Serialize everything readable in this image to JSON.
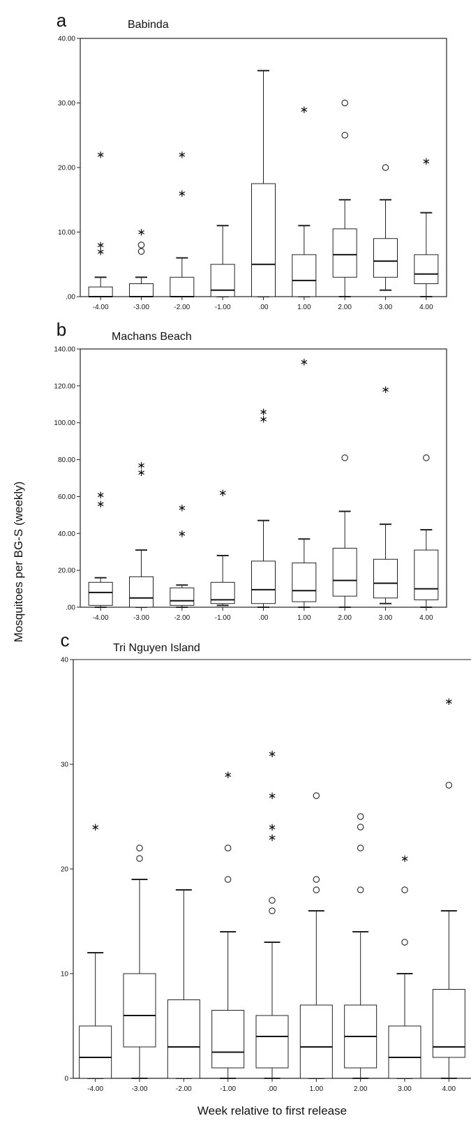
{
  "ylabel": "Mosquitoes per BG-S (weekly)",
  "xlabel": "Week relative to first release",
  "chart_data": [
    {
      "type": "box",
      "letter": "a",
      "title": "Babinda",
      "categories": [
        "-4.00",
        "-3.00",
        "-2.00",
        "-1.00",
        ".00",
        "1.00",
        "2.00",
        "3.00",
        "4.00"
      ],
      "ylim": [
        0,
        40
      ],
      "yticks": [
        0,
        10,
        20,
        30,
        40
      ],
      "ytick_labels": [
        ".00",
        "10.00",
        "20.00",
        "30.00",
        "40.00"
      ],
      "boxes": [
        {
          "min": 0,
          "q1": 0,
          "median": 0,
          "q3": 1.5,
          "max": 3,
          "outliers": [],
          "extremes": [
            7,
            8,
            22
          ]
        },
        {
          "min": 0,
          "q1": 0,
          "median": 0,
          "q3": 2,
          "max": 3,
          "outliers": [
            7,
            8
          ],
          "extremes": [
            10
          ]
        },
        {
          "min": 0,
          "q1": 0,
          "median": 0,
          "q3": 3,
          "max": 6,
          "outliers": [],
          "extremes": [
            16,
            22
          ]
        },
        {
          "min": 0,
          "q1": 0,
          "median": 1,
          "q3": 5,
          "max": 11,
          "outliers": [],
          "extremes": []
        },
        {
          "min": 0,
          "q1": 0,
          "median": 5,
          "q3": 17.5,
          "max": 35,
          "outliers": [],
          "extremes": []
        },
        {
          "min": 0,
          "q1": 0,
          "median": 2.5,
          "q3": 6.5,
          "max": 11,
          "outliers": [],
          "extremes": [
            29
          ]
        },
        {
          "min": 0,
          "q1": 3,
          "median": 6.5,
          "q3": 10.5,
          "max": 15,
          "outliers": [
            25,
            30
          ],
          "extremes": []
        },
        {
          "min": 1,
          "q1": 3,
          "median": 5.5,
          "q3": 9,
          "max": 15,
          "outliers": [
            20
          ],
          "extremes": []
        },
        {
          "min": 0,
          "q1": 2,
          "median": 3.5,
          "q3": 6.5,
          "max": 13,
          "outliers": [],
          "extremes": [
            21
          ]
        }
      ]
    },
    {
      "type": "box",
      "letter": "b",
      "title": "Machans Beach",
      "categories": [
        "-4.00",
        "-3.00",
        "-2.00",
        "-1.00",
        ".00",
        "1.00",
        "2.00",
        "3.00",
        "4.00"
      ],
      "ylim": [
        0,
        140
      ],
      "yticks": [
        0,
        20,
        40,
        60,
        80,
        100,
        120,
        140
      ],
      "ytick_labels": [
        ".00",
        "20.00",
        "40.00",
        "60.00",
        "80.00",
        "100.00",
        "120.00",
        "140.00"
      ],
      "boxes": [
        {
          "min": 0,
          "q1": 1,
          "median": 8,
          "q3": 13.5,
          "max": 16,
          "outliers": [],
          "extremes": [
            56,
            61
          ]
        },
        {
          "min": 0,
          "q1": 0,
          "median": 5,
          "q3": 16.5,
          "max": 31,
          "outliers": [],
          "extremes": [
            73,
            77
          ]
        },
        {
          "min": 0,
          "q1": 1,
          "median": 3.5,
          "q3": 10.5,
          "max": 12,
          "outliers": [],
          "extremes": [
            40,
            54
          ]
        },
        {
          "min": 1,
          "q1": 2,
          "median": 4,
          "q3": 13.5,
          "max": 28,
          "outliers": [],
          "extremes": [
            62
          ]
        },
        {
          "min": 0,
          "q1": 2,
          "median": 9.5,
          "q3": 25,
          "max": 47,
          "outliers": [],
          "extremes": [
            102,
            106
          ]
        },
        {
          "min": 0,
          "q1": 3,
          "median": 9,
          "q3": 24,
          "max": 37,
          "outliers": [],
          "extremes": [
            133
          ]
        },
        {
          "min": 0,
          "q1": 6,
          "median": 14.5,
          "q3": 32,
          "max": 52,
          "outliers": [
            81
          ],
          "extremes": []
        },
        {
          "min": 2,
          "q1": 5,
          "median": 13,
          "q3": 26,
          "max": 45,
          "outliers": [],
          "extremes": [
            118
          ]
        },
        {
          "min": 0,
          "q1": 4,
          "median": 10,
          "q3": 31,
          "max": 42,
          "outliers": [
            81
          ],
          "extremes": []
        }
      ]
    },
    {
      "type": "box",
      "letter": "c",
      "title": "Tri Nguyen Island",
      "categories": [
        "-4.00",
        "-3.00",
        "-2.00",
        "-1.00",
        ".00",
        "1.00",
        "2.00",
        "3.00",
        "4.00"
      ],
      "ylim": [
        0,
        40
      ],
      "yticks": [
        0,
        10,
        20,
        30,
        40
      ],
      "ytick_labels": [
        "0",
        "10",
        "20",
        "30",
        "40"
      ],
      "boxes": [
        {
          "min": 0,
          "q1": 0,
          "median": 2,
          "q3": 5,
          "max": 12,
          "outliers": [],
          "extremes": [
            24
          ]
        },
        {
          "min": 0,
          "q1": 3,
          "median": 6,
          "q3": 10,
          "max": 19,
          "outliers": [
            21,
            22
          ],
          "extremes": []
        },
        {
          "min": 0,
          "q1": 0,
          "median": 3,
          "q3": 7.5,
          "max": 18,
          "outliers": [],
          "extremes": []
        },
        {
          "min": 0,
          "q1": 1,
          "median": 2.5,
          "q3": 6.5,
          "max": 14,
          "outliers": [
            19,
            22
          ],
          "extremes": [
            29
          ]
        },
        {
          "min": 0,
          "q1": 1,
          "median": 4,
          "q3": 6,
          "max": 13,
          "outliers": [
            16,
            17
          ],
          "extremes": [
            23,
            24,
            27,
            31
          ]
        },
        {
          "min": 0,
          "q1": 0,
          "median": 3,
          "q3": 7,
          "max": 16,
          "outliers": [
            18,
            19,
            27
          ],
          "extremes": []
        },
        {
          "min": 0,
          "q1": 1,
          "median": 4,
          "q3": 7,
          "max": 14,
          "outliers": [
            18,
            22,
            24,
            25
          ],
          "extremes": []
        },
        {
          "min": 0,
          "q1": 0,
          "median": 2,
          "q3": 5,
          "max": 10,
          "outliers": [
            13,
            18
          ],
          "extremes": [
            21
          ]
        },
        {
          "min": 0,
          "q1": 2,
          "median": 3,
          "q3": 8.5,
          "max": 16,
          "outliers": [
            28
          ],
          "extremes": [
            36
          ]
        }
      ]
    }
  ]
}
